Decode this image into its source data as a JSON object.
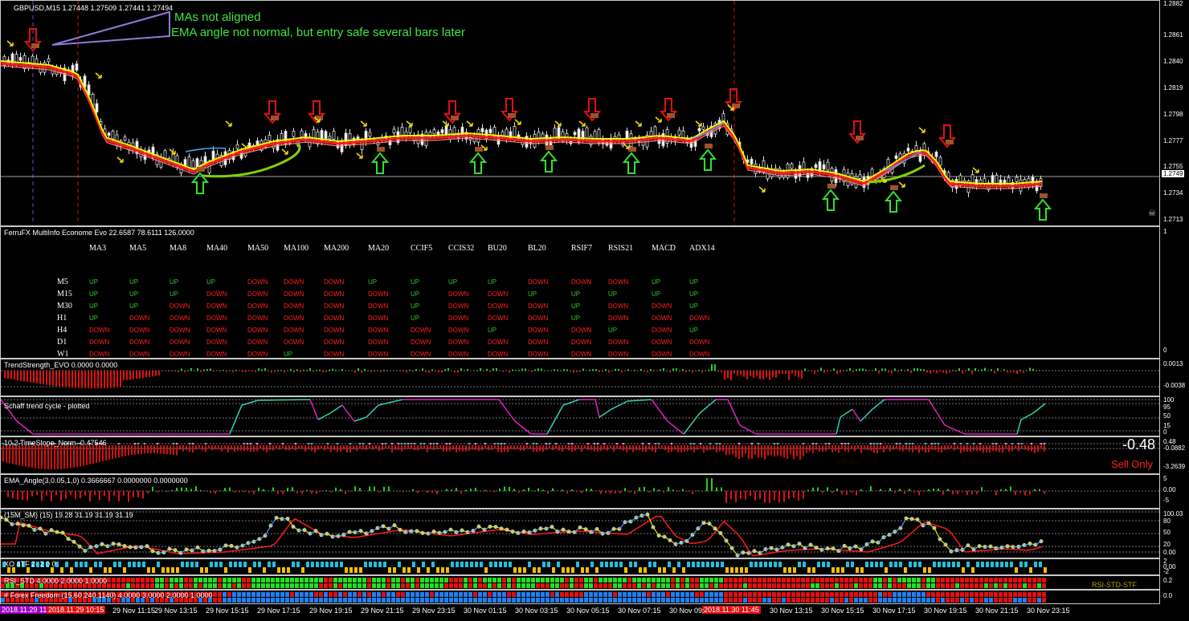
{
  "main_chart": {
    "title": "GBPUSD,M15  1.27448 1.27509 1.27441 1.27494",
    "annotation_line1": "MAs not aligned",
    "annotation_line2": "EMA angle not normal, but entry safe several bars later",
    "price_ticks": [
      "1.2882",
      "1.2861",
      "1.2840",
      "1.2819",
      "1.2798",
      "1.2777",
      "1.2755",
      "1.2749",
      "1.2734",
      "1.2713"
    ],
    "current_price": "1.2749"
  },
  "multiinfo": {
    "title": "FerruFX MultiInfo Econome Evo 22.6587 78.6111 126.0000",
    "scale_top": "1",
    "scale_bottom": "0",
    "columns": [
      "MA3",
      "MA5",
      "MA8",
      "MA40",
      "MA50",
      "MA100",
      "MA200",
      "MA20",
      "CCIF5",
      "CCIS32",
      "BU20",
      "BL20",
      "RSIF7",
      "RSIS21",
      "MACD",
      "ADX14"
    ],
    "rows": [
      {
        "tf": "M5",
        "vals": [
          "UP",
          "UP",
          "UP",
          "UP",
          "DOWN",
          "DOWN",
          "DOWN",
          "UP",
          "UP",
          "UP",
          "UP",
          "DOWN",
          "DOWN",
          "DOWN",
          "UP",
          "UP"
        ]
      },
      {
        "tf": "M15",
        "vals": [
          "UP",
          "UP",
          "UP",
          "DOWN",
          "DOWN",
          "DOWN",
          "DOWN",
          "DOWN",
          "UP",
          "DOWN",
          "DOWN",
          "UP",
          "UP",
          "UP",
          "UP",
          "UP"
        ]
      },
      {
        "tf": "M30",
        "vals": [
          "UP",
          "UP",
          "DOWN",
          "DOWN",
          "DOWN",
          "DOWN",
          "DOWN",
          "DOWN",
          "UP",
          "DOWN",
          "DOWN",
          "DOWN",
          "UP",
          "DOWN",
          "DOWN",
          "UP"
        ]
      },
      {
        "tf": "H1",
        "vals": [
          "UP",
          "DOWN",
          "DOWN",
          "DOWN",
          "DOWN",
          "DOWN",
          "DOWN",
          "DOWN",
          "UP",
          "DOWN",
          "DOWN",
          "DOWN",
          "UP",
          "DOWN",
          "DOWN",
          "DOWN"
        ]
      },
      {
        "tf": "H4",
        "vals": [
          "DOWN",
          "DOWN",
          "DOWN",
          "DOWN",
          "DOWN",
          "DOWN",
          "DOWN",
          "DOWN",
          "DOWN",
          "DOWN",
          "UP",
          "DOWN",
          "DOWN",
          "UP",
          "DOWN",
          "UP"
        ]
      },
      {
        "tf": "D1",
        "vals": [
          "DOWN",
          "DOWN",
          "DOWN",
          "DOWN",
          "DOWN",
          "DOWN",
          "DOWN",
          "DOWN",
          "DOWN",
          "DOWN",
          "DOWN",
          "DOWN",
          "DOWN",
          "DOWN",
          "DOWN",
          "DOWN"
        ]
      },
      {
        "tf": "W1",
        "vals": [
          "DOWN",
          "DOWN",
          "DOWN",
          "DOWN",
          "DOWN",
          "UP",
          "DOWN",
          "DOWN",
          "DOWN",
          "DOWN",
          "DOWN",
          "DOWN",
          "DOWN",
          "DOWN",
          "DOWN",
          "DOWN"
        ]
      }
    ]
  },
  "trendstrength": {
    "title": "TrendStrength_EVO 0.0000 0.0000",
    "tick_top": "0.0013",
    "tick_bottom": "-0.0038"
  },
  "schaff": {
    "title": "Schaff trend cycle - plotted",
    "ticks": [
      "100",
      "95",
      "50",
      "15",
      "0"
    ]
  },
  "timeslope": {
    "title": "10.2 TimeSlope_Norm -0.47546",
    "ticks": [
      "0.48",
      "-0.0882",
      "-3.2639"
    ],
    "big_value": "-0.48",
    "signal": "Sell Only"
  },
  "ema_angle": {
    "title": "EMA_Angle(3,0.05,1,0) 0.3666667 0.0000000 0.0000000",
    "ticks": [
      "5",
      "0.00",
      "-5"
    ]
  },
  "ssm": {
    "title": "(15M_SM)  (15) 19.28 31.19 31.19 31.19",
    "ticks": [
      "100.03",
      "80",
      "50",
      "20",
      "0.00"
    ]
  },
  "xo": {
    "title": "XO 4TF 2- 2 0 0",
    "ticks": [
      "2",
      "0.00",
      "-2"
    ]
  },
  "rsistd": {
    "title": "RSI_STD 4.0000 2.0000 1.0000",
    "tick": "0.2",
    "watermark": "RSI-STD-STF"
  },
  "forexfreedom": {
    "title": "# Forex Freedom (15,60,240,1140) 4.0000 3.0000 2.0000 1.0000",
    "tick": "0.0"
  },
  "xaxis": {
    "hl1": "2018.11.29 11:15",
    "hl2": "2018.11.29 10:15",
    "hl3": "2018.11.30 11:45",
    "labels": [
      "29 Nov 11:15",
      "29 Nov 13:15",
      "29 Nov 15:15",
      "29 Nov 17:15",
      "29 Nov 19:15",
      "29 Nov 21:15",
      "29 Nov 23:15",
      "30 Nov 01:15",
      "30 Nov 03:15",
      "30 Nov 05:15",
      "30 Nov 07:15",
      "30 Nov 09:",
      "30 Nov 13:15",
      "30 Nov 15:15",
      "30 Nov 17:15",
      "30 Nov 19:15",
      "30 Nov 21:15",
      "30 Nov 23:15"
    ]
  },
  "colors": {
    "up": "#2ec92e",
    "down": "#ff2020",
    "ema_red": "#ff1a1a",
    "ema_yellow": "#f3f300",
    "ema_green": "#7fd300",
    "ema_blue": "#3aa9ff",
    "sell": "#ff2020"
  }
}
